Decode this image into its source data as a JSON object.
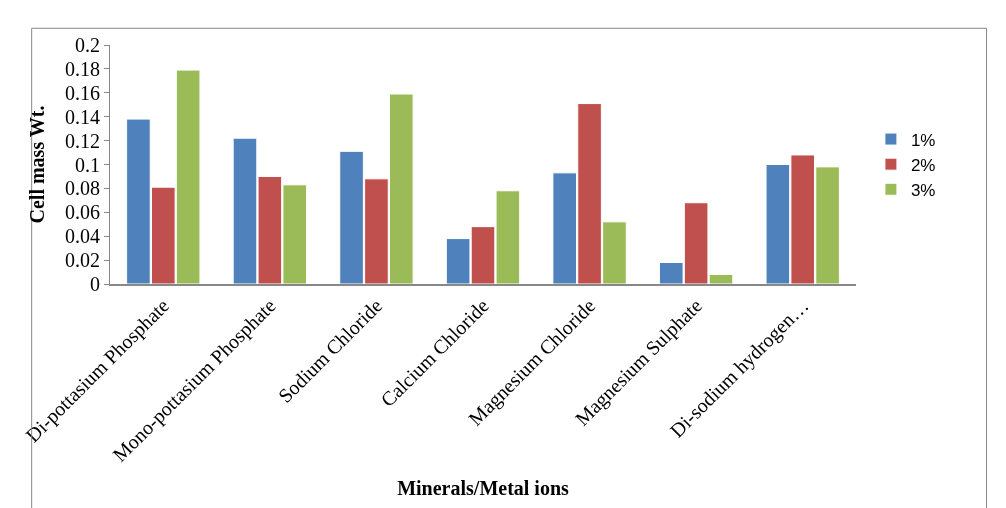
{
  "chart_data": {
    "type": "bar",
    "xlabel": "Minerals/Metal ions",
    "ylabel": "Cell mass Wt.",
    "categories": [
      "Di-pottasium Phosphate",
      "Mono-pottasium Phosphate",
      "Sodium Chloride",
      "Calcium Chloride",
      "Magnesium Chloride",
      "Magnesium Sulphate",
      "Di-sodium hydrogen…"
    ],
    "series": [
      {
        "name": "1%",
        "color": "#4f81bd",
        "values": [
          0.138,
          0.122,
          0.111,
          0.038,
          0.093,
          0.018,
          0.1
        ]
      },
      {
        "name": "2%",
        "color": "#c0504d",
        "values": [
          0.081,
          0.09,
          0.088,
          0.048,
          0.151,
          0.068,
          0.108
        ]
      },
      {
        "name": "3%",
        "color": "#9bbb59",
        "values": [
          0.179,
          0.083,
          0.159,
          0.078,
          0.052,
          0.008,
          0.098
        ]
      }
    ],
    "ylim": [
      0,
      0.2
    ],
    "yticks": [
      0,
      0.02,
      0.04,
      0.06,
      0.08,
      0.1,
      0.12,
      0.14,
      0.16,
      0.18,
      0.2
    ],
    "legend": "right"
  }
}
